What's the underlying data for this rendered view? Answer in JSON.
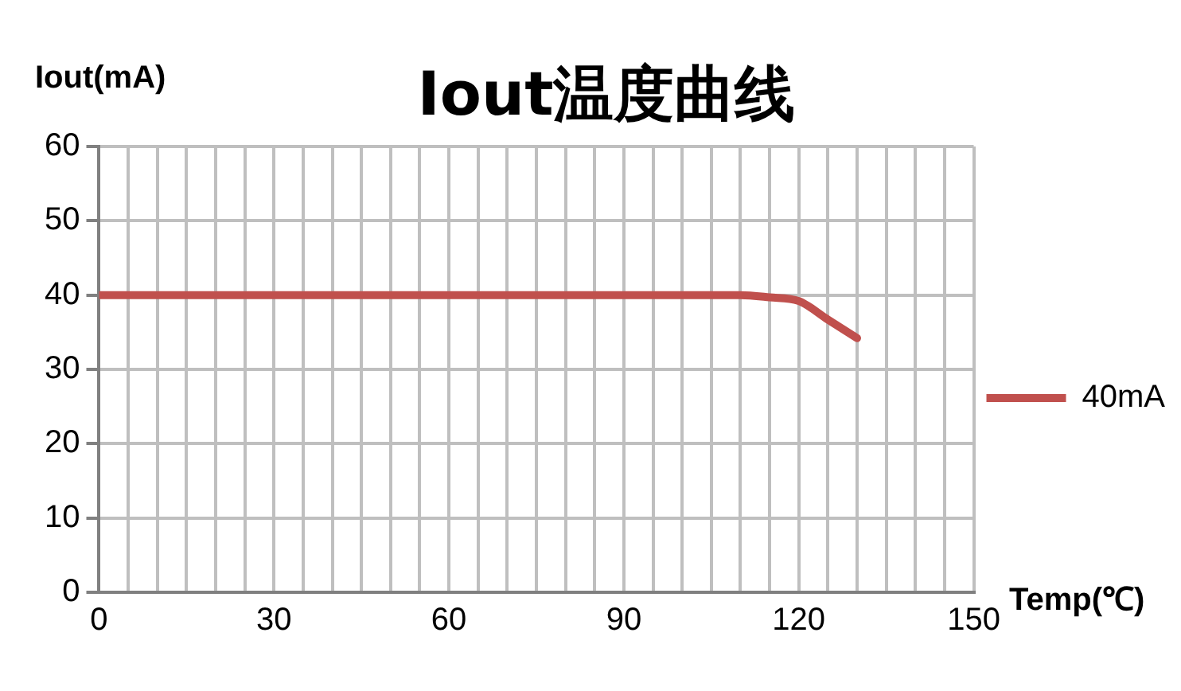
{
  "chart_data": {
    "type": "line",
    "title": "Iout温度曲线",
    "xlabel": "Temp(℃)",
    "ylabel": "Iout(mA)",
    "x": [
      0,
      30,
      60,
      90,
      100,
      110,
      115,
      120,
      125,
      130
    ],
    "series": [
      {
        "name": "40mA",
        "color": "#c0504d",
        "values": [
          40,
          40,
          40,
          40,
          40,
          40,
          39.7,
          39.2,
          36.7,
          34.2
        ]
      }
    ],
    "xlim": [
      0,
      150
    ],
    "xticks": [
      0,
      {
        "value": 5,
        "label": null
      },
      {
        "value": 10,
        "label": null
      },
      {
        "value": 15,
        "label": null
      },
      {
        "value": 20,
        "label": null
      },
      {
        "value": 25,
        "label": null
      },
      30,
      {
        "value": 35,
        "label": null
      },
      {
        "value": 40,
        "label": null
      },
      {
        "value": 45,
        "label": null
      },
      {
        "value": 50,
        "label": null
      },
      {
        "value": 55,
        "label": null
      },
      60,
      {
        "value": 65,
        "label": null
      },
      {
        "value": 70,
        "label": null
      },
      {
        "value": 75,
        "label": null
      },
      {
        "value": 80,
        "label": null
      },
      {
        "value": 85,
        "label": null
      },
      90,
      {
        "value": 95,
        "label": null
      },
      {
        "value": 100,
        "label": null
      },
      {
        "value": 105,
        "label": null
      },
      {
        "value": 110,
        "label": null
      },
      {
        "value": 115,
        "label": null
      },
      120,
      {
        "value": 125,
        "label": null
      },
      {
        "value": 130,
        "label": null
      },
      {
        "value": 135,
        "label": null
      },
      {
        "value": 140,
        "label": null
      },
      {
        "value": 145,
        "label": null
      },
      150
    ],
    "ylim": [
      0,
      60
    ],
    "yticks": [
      0,
      10,
      20,
      30,
      40,
      50,
      60
    ],
    "grid": true,
    "legend": "right",
    "marker": "none",
    "line_style": "solid"
  }
}
